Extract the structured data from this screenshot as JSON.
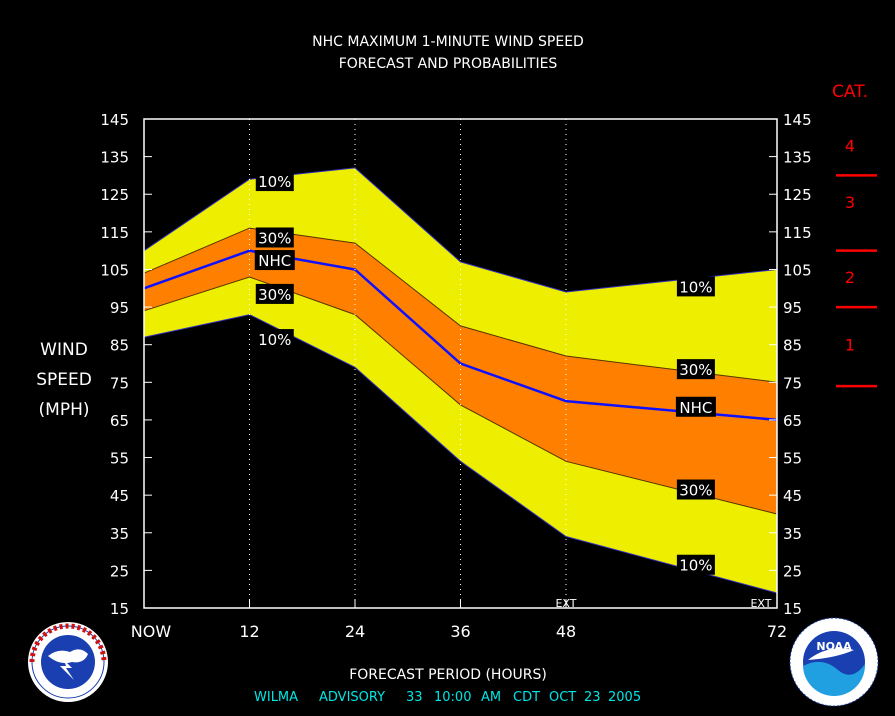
{
  "chart_data": {
    "type": "area",
    "title_lines": [
      "NHC MAXIMUM 1-MINUTE WIND SPEED",
      "FORECAST AND PROBABILITIES"
    ],
    "ylabel_lines": [
      "WIND",
      "SPEED",
      "(MPH)"
    ],
    "xlabel": "FORECAST PERIOD (HOURS)",
    "x_ticks": [
      {
        "x": 0,
        "label": "NOW"
      },
      {
        "x": 12,
        "label": "12"
      },
      {
        "x": 24,
        "label": "24"
      },
      {
        "x": 36,
        "label": "36"
      },
      {
        "x": 48,
        "label": "48"
      },
      {
        "x": 72,
        "label": "72"
      }
    ],
    "y_ticks": [
      15,
      25,
      35,
      45,
      55,
      65,
      75,
      85,
      95,
      105,
      115,
      125,
      135,
      145
    ],
    "xlim": [
      0,
      72
    ],
    "ylim": [
      15,
      145
    ],
    "gridlines_x": [
      12,
      24,
      36,
      48
    ],
    "ext_markers": [
      {
        "x": 48,
        "label": "EXT"
      },
      {
        "x": 72,
        "label": "EXT"
      }
    ],
    "x": [
      0,
      12,
      24,
      36,
      48,
      72
    ],
    "series": [
      {
        "name": "10%",
        "role": "upper",
        "values": [
          110,
          129,
          132,
          107,
          99,
          105
        ]
      },
      {
        "name": "30%",
        "role": "upper",
        "values": [
          104,
          116,
          112,
          90,
          82,
          75
        ]
      },
      {
        "name": "NHC",
        "role": "forecast",
        "values": [
          100,
          110,
          105,
          80,
          70,
          65
        ]
      },
      {
        "name": "30%",
        "role": "lower",
        "values": [
          94,
          103,
          93,
          69,
          54,
          40
        ]
      },
      {
        "name": "10%",
        "role": "lower",
        "values": [
          87,
          93,
          79,
          54,
          34,
          19
        ]
      }
    ],
    "series_labels": [
      {
        "text": "10%",
        "x": 12.6,
        "y": 128.5
      },
      {
        "text": "30%",
        "x": 12.6,
        "y": 113.5
      },
      {
        "text": "NHC",
        "x": 12.6,
        "y": 107.5
      },
      {
        "text": "30%",
        "x": 12.6,
        "y": 98.5
      },
      {
        "text": "10%",
        "x": 12.6,
        "y": 86.5
      },
      {
        "text": "10%",
        "x": 60.5,
        "y": 100.5
      },
      {
        "text": "30%",
        "x": 60.5,
        "y": 78.5
      },
      {
        "text": "NHC",
        "x": 60.5,
        "y": 68.5
      },
      {
        "text": "30%",
        "x": 60.5,
        "y": 46.5
      },
      {
        "text": "10%",
        "x": 60.5,
        "y": 26.5
      }
    ],
    "categories_scale": {
      "title": "CAT.",
      "labels": [
        {
          "text": "4",
          "y": 138
        },
        {
          "text": "3",
          "y": 123
        },
        {
          "text": "2",
          "y": 103
        },
        {
          "text": "1",
          "y": 85
        }
      ],
      "boundaries": [
        130,
        110,
        95,
        74
      ]
    },
    "colors": {
      "background": "#000000",
      "band_10": "#eeee00",
      "band_30": "#ff8000",
      "forecast_line": "#1010ff",
      "text": "#ffffff",
      "category": "#ff0000",
      "advisory": "#00e5e5"
    },
    "grid": true,
    "legend": "none"
  },
  "advisory": {
    "name": "WILMA",
    "label": "ADVISORY",
    "number": "33",
    "time": "10:00",
    "ampm": "AM",
    "tz": "CDT",
    "month": "OCT",
    "day": "23",
    "year": "2005"
  },
  "logos": {
    "nws_icon": "national-weather-service-logo",
    "noaa_icon": "noaa-logo",
    "noaa_text": "NOAA"
  }
}
